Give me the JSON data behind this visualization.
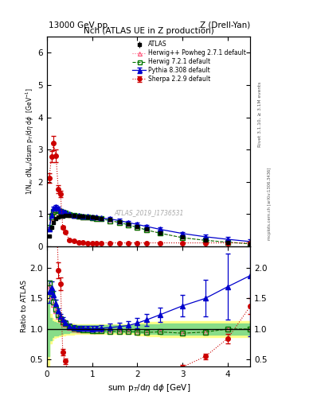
{
  "title_top": "13000 GeV pp",
  "title_top_right": "Z (Drell-Yan)",
  "plot_title": "Nch (ATLAS UE in Z production)",
  "xlabel": "sum p$_T$/d$\\eta$ d$\\phi$ [GeV]",
  "ylabel_main": "1/N$_{ev}$ dN$_{ev}$/dsum p$_T$/d$\\eta$ d$\\phi$  [GeV$^{-1}$]",
  "ylabel_ratio": "Ratio to ATLAS",
  "rivet_label": "Rivet 3.1.10, ≥ 3.1M events",
  "arxiv_label": "mcplots.cern.ch [arXiv:1306.3436]",
  "atlas_label": "ATLAS_2019_I1736531",
  "xlim": [
    0.0,
    4.5
  ],
  "ylim_main": [
    0.0,
    6.5
  ],
  "ylim_ratio": [
    0.39,
    2.35
  ],
  "yticks_main": [
    0,
    1,
    2,
    3,
    4,
    5,
    6
  ],
  "yticks_ratio": [
    0.5,
    1.0,
    1.5,
    2.0
  ],
  "x_atlas": [
    0.05,
    0.1,
    0.15,
    0.2,
    0.25,
    0.3,
    0.35,
    0.4,
    0.5,
    0.6,
    0.7,
    0.8,
    0.9,
    1.0,
    1.1,
    1.2,
    1.4,
    1.6,
    1.8,
    2.0,
    2.2,
    2.5,
    3.0,
    3.5,
    4.0,
    4.5
  ],
  "y_atlas": [
    0.33,
    0.58,
    0.75,
    0.86,
    0.91,
    0.93,
    0.94,
    0.95,
    0.96,
    0.95,
    0.94,
    0.93,
    0.92,
    0.91,
    0.89,
    0.87,
    0.83,
    0.77,
    0.7,
    0.62,
    0.54,
    0.43,
    0.29,
    0.2,
    0.13,
    0.08
  ],
  "y_atlas_err": [
    0.03,
    0.03,
    0.03,
    0.03,
    0.02,
    0.02,
    0.02,
    0.02,
    0.02,
    0.02,
    0.02,
    0.02,
    0.02,
    0.02,
    0.02,
    0.02,
    0.02,
    0.02,
    0.02,
    0.02,
    0.02,
    0.02,
    0.02,
    0.02,
    0.02,
    0.02
  ],
  "x_hpp": [
    0.05,
    0.1,
    0.15,
    0.2,
    0.25,
    0.3,
    0.35,
    0.4,
    0.5,
    0.6,
    0.7,
    0.8,
    0.9,
    1.0,
    1.1,
    1.2,
    1.4,
    1.6,
    1.8,
    2.0,
    2.2,
    2.5,
    3.0,
    3.5,
    4.0,
    4.5
  ],
  "y_hpp": [
    0.56,
    0.88,
    1.05,
    1.12,
    1.1,
    1.07,
    1.04,
    1.02,
    0.98,
    0.95,
    0.93,
    0.92,
    0.91,
    0.89,
    0.87,
    0.85,
    0.8,
    0.74,
    0.67,
    0.59,
    0.51,
    0.41,
    0.27,
    0.19,
    0.13,
    0.08
  ],
  "x_h72": [
    0.05,
    0.1,
    0.15,
    0.2,
    0.25,
    0.3,
    0.35,
    0.4,
    0.5,
    0.6,
    0.7,
    0.8,
    0.9,
    1.0,
    1.1,
    1.2,
    1.4,
    1.6,
    1.8,
    2.0,
    2.2,
    2.5,
    3.0,
    3.5,
    4.0,
    4.5
  ],
  "y_h72": [
    0.58,
    0.92,
    1.08,
    1.14,
    1.12,
    1.08,
    1.05,
    1.03,
    0.99,
    0.96,
    0.94,
    0.92,
    0.91,
    0.89,
    0.87,
    0.85,
    0.8,
    0.74,
    0.67,
    0.59,
    0.51,
    0.41,
    0.27,
    0.19,
    0.13,
    0.08
  ],
  "x_py": [
    0.05,
    0.1,
    0.15,
    0.2,
    0.25,
    0.3,
    0.35,
    0.4,
    0.5,
    0.6,
    0.7,
    0.8,
    0.9,
    1.0,
    1.1,
    1.2,
    1.4,
    1.6,
    1.8,
    2.0,
    2.2,
    2.5,
    3.0,
    3.5,
    4.0,
    4.5
  ],
  "y_py": [
    0.53,
    0.97,
    1.17,
    1.22,
    1.18,
    1.12,
    1.08,
    1.05,
    1.0,
    0.97,
    0.95,
    0.94,
    0.93,
    0.91,
    0.9,
    0.88,
    0.85,
    0.8,
    0.74,
    0.68,
    0.62,
    0.53,
    0.4,
    0.3,
    0.22,
    0.15
  ],
  "y_py_err": [
    0.06,
    0.06,
    0.05,
    0.05,
    0.04,
    0.04,
    0.04,
    0.04,
    0.04,
    0.04,
    0.04,
    0.04,
    0.04,
    0.04,
    0.04,
    0.04,
    0.05,
    0.05,
    0.05,
    0.05,
    0.05,
    0.05,
    0.05,
    0.06,
    0.07,
    0.08
  ],
  "x_sh": [
    0.05,
    0.1,
    0.15,
    0.2,
    0.25,
    0.3,
    0.35,
    0.4,
    0.5,
    0.6,
    0.7,
    0.8,
    0.9,
    1.0,
    1.1,
    1.2,
    1.4,
    1.6,
    1.8,
    2.0,
    2.2,
    2.5,
    3.0,
    3.5,
    4.0,
    4.5
  ],
  "y_sh": [
    2.12,
    2.78,
    3.2,
    2.8,
    1.78,
    1.62,
    0.58,
    0.45,
    0.2,
    0.16,
    0.13,
    0.12,
    0.11,
    0.11,
    0.11,
    0.11,
    0.11,
    0.11,
    0.11,
    0.11,
    0.11,
    0.11,
    0.11,
    0.11,
    0.11,
    0.11
  ],
  "y_sh_err": [
    0.15,
    0.18,
    0.22,
    0.2,
    0.12,
    0.1,
    0.05,
    0.04,
    0.02,
    0.02,
    0.01,
    0.01,
    0.01,
    0.01,
    0.01,
    0.01,
    0.01,
    0.01,
    0.01,
    0.01,
    0.01,
    0.01,
    0.01,
    0.01,
    0.01,
    0.01
  ],
  "band_x": [
    0.0,
    0.05,
    0.1,
    0.15,
    0.2,
    0.25,
    0.3,
    0.35,
    0.4,
    0.5,
    0.6,
    0.7,
    0.8,
    0.9,
    1.0,
    1.1,
    1.2,
    1.4,
    1.6,
    1.8,
    2.0,
    2.2,
    2.5,
    3.0,
    3.5,
    4.0,
    4.5
  ],
  "band_yellow_lo": [
    0.4,
    0.4,
    0.76,
    0.82,
    0.85,
    0.87,
    0.88,
    0.89,
    0.9,
    0.91,
    0.91,
    0.92,
    0.92,
    0.92,
    0.92,
    0.92,
    0.92,
    0.92,
    0.92,
    0.92,
    0.92,
    0.9,
    0.88,
    0.87,
    0.87,
    0.87,
    0.87
  ],
  "band_yellow_hi": [
    1.6,
    1.6,
    1.24,
    1.18,
    1.15,
    1.13,
    1.12,
    1.11,
    1.1,
    1.09,
    1.09,
    1.08,
    1.08,
    1.08,
    1.08,
    1.08,
    1.08,
    1.08,
    1.08,
    1.08,
    1.08,
    1.1,
    1.12,
    1.13,
    1.13,
    1.13,
    1.13
  ],
  "band_green_lo": [
    0.55,
    0.55,
    0.82,
    0.87,
    0.89,
    0.9,
    0.91,
    0.92,
    0.93,
    0.93,
    0.94,
    0.94,
    0.94,
    0.94,
    0.94,
    0.94,
    0.94,
    0.94,
    0.94,
    0.94,
    0.94,
    0.93,
    0.92,
    0.91,
    0.91,
    0.91,
    0.91
  ],
  "band_green_hi": [
    1.45,
    1.45,
    1.18,
    1.13,
    1.11,
    1.1,
    1.09,
    1.08,
    1.07,
    1.07,
    1.06,
    1.06,
    1.06,
    1.06,
    1.06,
    1.06,
    1.06,
    1.06,
    1.06,
    1.06,
    1.06,
    1.07,
    1.08,
    1.09,
    1.09,
    1.09,
    1.09
  ],
  "color_atlas": "#000000",
  "color_herwig_pp": "#ff6688",
  "color_herwig72": "#007700",
  "color_pythia": "#0000cc",
  "color_sherpa": "#cc0000",
  "color_yellow": "#ffff88",
  "color_green": "#88dd88"
}
